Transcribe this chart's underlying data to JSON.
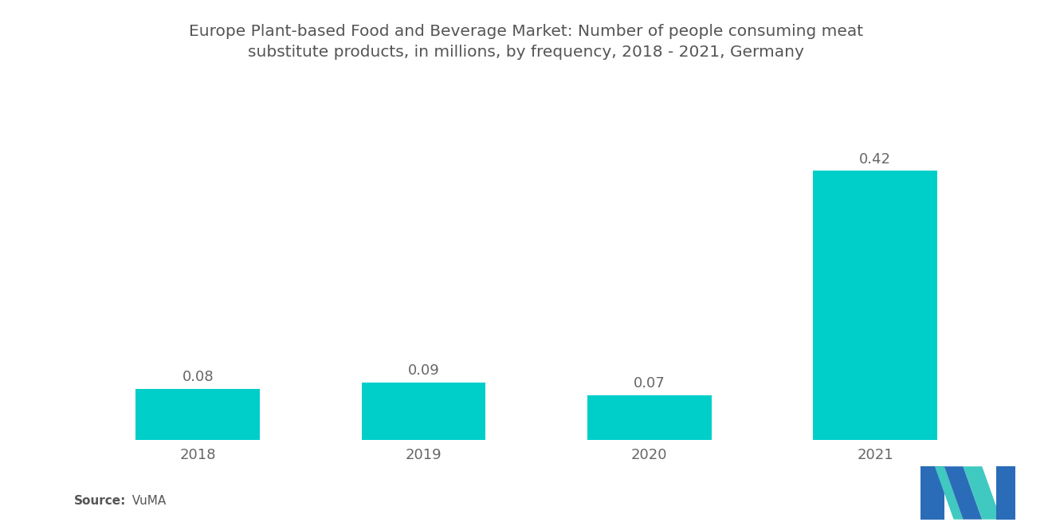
{
  "title": "Europe Plant-based Food and Beverage Market: Number of people consuming meat\nsubstitute products, in millions, by frequency, 2018 - 2021, Germany",
  "categories": [
    "2018",
    "2019",
    "2020",
    "2021"
  ],
  "values": [
    0.08,
    0.09,
    0.07,
    0.42
  ],
  "bar_color": "#00CEC9",
  "background_color": "#ffffff",
  "title_fontsize": 14.5,
  "label_fontsize": 13,
  "tick_fontsize": 13,
  "source_bold": "Source:",
  "source_normal": "  VuMA",
  "ylim": [
    0,
    0.48
  ],
  "bar_width": 0.55,
  "logo_blue": "#2B6CB8",
  "logo_teal": "#40C9C0"
}
